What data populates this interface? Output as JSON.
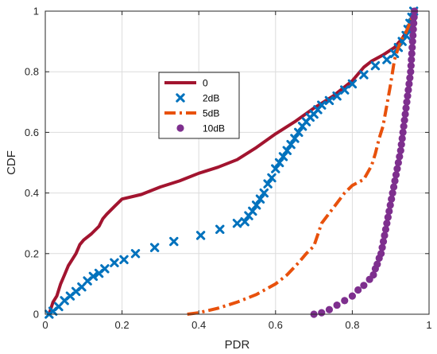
{
  "chart_data": {
    "type": "line",
    "xlabel": "PDR",
    "ylabel": "CDF",
    "xlim": [
      0,
      1
    ],
    "ylim": [
      0,
      1
    ],
    "grid": true,
    "legend_position": "upper-left-center",
    "x_ticks": [
      "0",
      "0.2",
      "0.4",
      "0.6",
      "0.8",
      "1"
    ],
    "y_ticks": [
      "0",
      "0.2",
      "0.4",
      "0.6",
      "0.8",
      "1"
    ],
    "series": [
      {
        "name": "0",
        "style": "solid",
        "color": "#A2142F",
        "points": [
          [
            0.01,
            0
          ],
          [
            0.02,
            0.04
          ],
          [
            0.03,
            0.06
          ],
          [
            0.04,
            0.1
          ],
          [
            0.05,
            0.13
          ],
          [
            0.06,
            0.16
          ],
          [
            0.07,
            0.18
          ],
          [
            0.08,
            0.2
          ],
          [
            0.09,
            0.23
          ],
          [
            0.1,
            0.245
          ],
          [
            0.12,
            0.265
          ],
          [
            0.14,
            0.29
          ],
          [
            0.15,
            0.315
          ],
          [
            0.16,
            0.33
          ],
          [
            0.18,
            0.355
          ],
          [
            0.2,
            0.38
          ],
          [
            0.25,
            0.395
          ],
          [
            0.3,
            0.42
          ],
          [
            0.35,
            0.44
          ],
          [
            0.4,
            0.465
          ],
          [
            0.45,
            0.485
          ],
          [
            0.5,
            0.51
          ],
          [
            0.55,
            0.55
          ],
          [
            0.6,
            0.595
          ],
          [
            0.65,
            0.635
          ],
          [
            0.7,
            0.68
          ],
          [
            0.75,
            0.72
          ],
          [
            0.8,
            0.77
          ],
          [
            0.83,
            0.815
          ],
          [
            0.85,
            0.835
          ],
          [
            0.88,
            0.855
          ],
          [
            0.91,
            0.88
          ],
          [
            0.93,
            0.91
          ],
          [
            0.95,
            0.95
          ],
          [
            0.96,
            1.0
          ]
        ]
      },
      {
        "name": "2dB",
        "style": "markers",
        "marker": "x",
        "color": "#0072BD",
        "points": [
          [
            0.01,
            0
          ],
          [
            0.02,
            0.01
          ],
          [
            0.035,
            0.025
          ],
          [
            0.05,
            0.045
          ],
          [
            0.065,
            0.06
          ],
          [
            0.08,
            0.075
          ],
          [
            0.095,
            0.09
          ],
          [
            0.11,
            0.11
          ],
          [
            0.125,
            0.125
          ],
          [
            0.14,
            0.135
          ],
          [
            0.155,
            0.15
          ],
          [
            0.18,
            0.17
          ],
          [
            0.205,
            0.18
          ],
          [
            0.235,
            0.2
          ],
          [
            0.285,
            0.22
          ],
          [
            0.335,
            0.24
          ],
          [
            0.405,
            0.26
          ],
          [
            0.455,
            0.28
          ],
          [
            0.5,
            0.3
          ],
          [
            0.52,
            0.305
          ],
          [
            0.53,
            0.325
          ],
          [
            0.54,
            0.34
          ],
          [
            0.55,
            0.36
          ],
          [
            0.56,
            0.38
          ],
          [
            0.57,
            0.4
          ],
          [
            0.58,
            0.43
          ],
          [
            0.59,
            0.45
          ],
          [
            0.6,
            0.48
          ],
          [
            0.61,
            0.5
          ],
          [
            0.62,
            0.52
          ],
          [
            0.63,
            0.54
          ],
          [
            0.64,
            0.56
          ],
          [
            0.65,
            0.58
          ],
          [
            0.66,
            0.6
          ],
          [
            0.67,
            0.62
          ],
          [
            0.68,
            0.635
          ],
          [
            0.69,
            0.65
          ],
          [
            0.7,
            0.66
          ],
          [
            0.71,
            0.675
          ],
          [
            0.72,
            0.69
          ],
          [
            0.74,
            0.705
          ],
          [
            0.76,
            0.72
          ],
          [
            0.78,
            0.74
          ],
          [
            0.8,
            0.76
          ],
          [
            0.83,
            0.79
          ],
          [
            0.86,
            0.82
          ],
          [
            0.89,
            0.84
          ],
          [
            0.91,
            0.86
          ],
          [
            0.92,
            0.88
          ],
          [
            0.93,
            0.9
          ],
          [
            0.94,
            0.92
          ],
          [
            0.945,
            0.94
          ],
          [
            0.95,
            0.96
          ],
          [
            0.955,
            0.98
          ],
          [
            0.96,
            1.0
          ]
        ]
      },
      {
        "name": "5dB",
        "style": "dashdot",
        "color": "#E8510C",
        "points": [
          [
            0.37,
            0
          ],
          [
            0.4,
            0.005
          ],
          [
            0.45,
            0.02
          ],
          [
            0.5,
            0.04
          ],
          [
            0.55,
            0.065
          ],
          [
            0.6,
            0.1
          ],
          [
            0.63,
            0.13
          ],
          [
            0.66,
            0.17
          ],
          [
            0.68,
            0.2
          ],
          [
            0.7,
            0.225
          ],
          [
            0.72,
            0.3
          ],
          [
            0.75,
            0.35
          ],
          [
            0.78,
            0.4
          ],
          [
            0.8,
            0.425
          ],
          [
            0.83,
            0.445
          ],
          [
            0.85,
            0.49
          ],
          [
            0.86,
            0.53
          ],
          [
            0.87,
            0.58
          ],
          [
            0.88,
            0.62
          ],
          [
            0.89,
            0.69
          ],
          [
            0.9,
            0.76
          ],
          [
            0.91,
            0.84
          ],
          [
            0.92,
            0.88
          ],
          [
            0.93,
            0.91
          ],
          [
            0.94,
            0.93
          ],
          [
            0.95,
            0.96
          ],
          [
            0.96,
            1.0
          ]
        ]
      },
      {
        "name": "10dB",
        "style": "markers",
        "marker": "o",
        "color": "#7E2F8E",
        "points": [
          [
            0.7,
            0
          ],
          [
            0.72,
            0.005
          ],
          [
            0.74,
            0.015
          ],
          [
            0.76,
            0.03
          ],
          [
            0.78,
            0.045
          ],
          [
            0.8,
            0.06
          ],
          [
            0.815,
            0.08
          ],
          [
            0.83,
            0.095
          ],
          [
            0.845,
            0.115
          ],
          [
            0.855,
            0.13
          ],
          [
            0.86,
            0.15
          ],
          [
            0.865,
            0.165
          ],
          [
            0.87,
            0.185
          ],
          [
            0.875,
            0.2
          ],
          [
            0.878,
            0.22
          ],
          [
            0.881,
            0.24
          ],
          [
            0.884,
            0.26
          ],
          [
            0.887,
            0.28
          ],
          [
            0.89,
            0.3
          ],
          [
            0.893,
            0.32
          ],
          [
            0.896,
            0.34
          ],
          [
            0.899,
            0.36
          ],
          [
            0.902,
            0.38
          ],
          [
            0.905,
            0.4
          ],
          [
            0.908,
            0.42
          ],
          [
            0.911,
            0.44
          ],
          [
            0.914,
            0.46
          ],
          [
            0.917,
            0.48
          ],
          [
            0.92,
            0.5
          ],
          [
            0.923,
            0.52
          ],
          [
            0.926,
            0.54
          ],
          [
            0.928,
            0.56
          ],
          [
            0.93,
            0.58
          ],
          [
            0.932,
            0.6
          ],
          [
            0.934,
            0.62
          ],
          [
            0.936,
            0.64
          ],
          [
            0.938,
            0.66
          ],
          [
            0.94,
            0.68
          ],
          [
            0.942,
            0.7
          ],
          [
            0.944,
            0.72
          ],
          [
            0.946,
            0.74
          ],
          [
            0.948,
            0.76
          ],
          [
            0.95,
            0.78
          ],
          [
            0.952,
            0.8
          ],
          [
            0.953,
            0.82
          ],
          [
            0.954,
            0.84
          ],
          [
            0.955,
            0.86
          ],
          [
            0.956,
            0.88
          ],
          [
            0.957,
            0.9
          ],
          [
            0.958,
            0.92
          ],
          [
            0.959,
            0.94
          ],
          [
            0.96,
            0.96
          ],
          [
            0.961,
            0.98
          ],
          [
            0.962,
            1.0
          ]
        ]
      }
    ]
  }
}
